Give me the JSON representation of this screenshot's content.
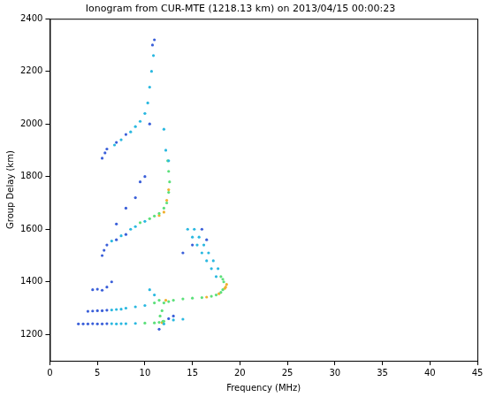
{
  "chart_data": {
    "type": "scatter",
    "title": "Ionogram from CUR-MTE (1218.13 km) on 2013/04/15 00:00:23",
    "x_label": "Frequency (MHz)",
    "y_label": "Group Delay (km)",
    "xlim": [
      0,
      45
    ],
    "xticks": [
      0,
      5,
      10,
      15,
      20,
      25,
      30,
      35,
      40,
      45
    ],
    "ylim": [
      1100,
      2400
    ],
    "yticks": [
      1200,
      1400,
      1600,
      1800,
      2000,
      2200,
      2400
    ],
    "grid": false,
    "marker": "circle",
    "series": [
      {
        "color": "#3a5fd9",
        "values": [
          [
            3.0,
            1240
          ],
          [
            3.5,
            1240
          ],
          [
            4,
            1240
          ],
          [
            4.5,
            1241
          ],
          [
            5,
            1240
          ],
          [
            5.5,
            1240
          ],
          [
            6,
            1241
          ],
          [
            4,
            1288
          ],
          [
            4.5,
            1289
          ],
          [
            5,
            1290
          ],
          [
            5.5,
            1290
          ],
          [
            6,
            1292
          ],
          [
            4.5,
            1370
          ],
          [
            5,
            1372
          ],
          [
            5.5,
            1368
          ],
          [
            6,
            1380
          ],
          [
            6.5,
            1400
          ],
          [
            5.5,
            1500
          ],
          [
            5.7,
            1520
          ],
          [
            6,
            1540
          ],
          [
            7,
            1560
          ],
          [
            8,
            1580
          ],
          [
            7,
            1620
          ],
          [
            8,
            1680
          ],
          [
            9,
            1720
          ],
          [
            9.5,
            1780
          ],
          [
            10,
            1800
          ],
          [
            5.5,
            1870
          ],
          [
            5.8,
            1890
          ],
          [
            6,
            1905
          ],
          [
            7,
            1930
          ],
          [
            8,
            1960
          ],
          [
            10.5,
            2000
          ],
          [
            11,
            2320
          ],
          [
            10.8,
            2300
          ],
          [
            16,
            1600
          ],
          [
            16.5,
            1560
          ],
          [
            14,
            1510
          ],
          [
            15,
            1540
          ],
          [
            11.5,
            1220
          ],
          [
            12.5,
            1260
          ],
          [
            13,
            1270
          ]
        ]
      },
      {
        "color": "#2ab8e0",
        "values": [
          [
            6.5,
            1241
          ],
          [
            7,
            1240
          ],
          [
            7.5,
            1241
          ],
          [
            8,
            1241
          ],
          [
            9,
            1242
          ],
          [
            6.5,
            1293
          ],
          [
            7,
            1295
          ],
          [
            7.5,
            1296
          ],
          [
            8,
            1300
          ],
          [
            9,
            1305
          ],
          [
            10,
            1310
          ],
          [
            6.8,
            1920
          ],
          [
            7.5,
            1940
          ],
          [
            8.5,
            1970
          ],
          [
            9,
            1990
          ],
          [
            9.5,
            2010
          ],
          [
            10,
            2040
          ],
          [
            10.3,
            2080
          ],
          [
            10.5,
            2140
          ],
          [
            10.7,
            2200
          ],
          [
            10.9,
            2260
          ],
          [
            6.5,
            1555
          ],
          [
            7.5,
            1575
          ],
          [
            8.5,
            1600
          ],
          [
            9,
            1610
          ],
          [
            10,
            1630
          ],
          [
            12,
            1980
          ],
          [
            12.2,
            1900
          ],
          [
            12.5,
            1860
          ],
          [
            14.5,
            1600
          ],
          [
            15,
            1570
          ],
          [
            15.5,
            1540
          ],
          [
            16,
            1510
          ],
          [
            16.5,
            1480
          ],
          [
            17,
            1450
          ],
          [
            17.5,
            1420
          ],
          [
            15.2,
            1600
          ],
          [
            15.7,
            1570
          ],
          [
            16.2,
            1540
          ],
          [
            16.7,
            1510
          ],
          [
            17.2,
            1480
          ],
          [
            17.7,
            1450
          ],
          [
            11,
            1350
          ],
          [
            10.5,
            1370
          ],
          [
            12,
            1240
          ],
          [
            13,
            1255
          ],
          [
            14,
            1258
          ]
        ]
      },
      {
        "color": "#5ce07a",
        "values": [
          [
            10,
            1243
          ],
          [
            11,
            1244
          ],
          [
            11.5,
            1246
          ],
          [
            12,
            1250
          ],
          [
            11,
            1320
          ],
          [
            11.5,
            1330
          ],
          [
            12,
            1320
          ],
          [
            12.5,
            1325
          ],
          [
            13,
            1330
          ],
          [
            14,
            1335
          ],
          [
            15,
            1338
          ],
          [
            16,
            1340
          ],
          [
            17,
            1345
          ],
          [
            17.5,
            1350
          ],
          [
            18,
            1360
          ],
          [
            18.2,
            1370
          ],
          [
            18.3,
            1400
          ],
          [
            18.2,
            1410
          ],
          [
            18,
            1420
          ],
          [
            10.5,
            1640
          ],
          [
            11,
            1650
          ],
          [
            11.5,
            1660
          ],
          [
            12,
            1680
          ],
          [
            12.3,
            1700
          ],
          [
            12.5,
            1740
          ],
          [
            12.6,
            1780
          ],
          [
            12.5,
            1820
          ],
          [
            12.4,
            1860
          ],
          [
            9.5,
            1625
          ],
          [
            11.8,
            1290
          ],
          [
            11.6,
            1270
          ],
          [
            11.9,
            1250
          ]
        ]
      },
      {
        "color": "#f0b030",
        "values": [
          [
            11.5,
            1652
          ],
          [
            12,
            1665
          ],
          [
            12.3,
            1710
          ],
          [
            12.5,
            1750
          ],
          [
            18.5,
            1380
          ],
          [
            18.6,
            1390
          ],
          [
            18.4,
            1375
          ],
          [
            16.5,
            1342
          ],
          [
            11.8,
            1245
          ],
          [
            12.2,
            1330
          ],
          [
            17.8,
            1355
          ]
        ]
      }
    ]
  }
}
